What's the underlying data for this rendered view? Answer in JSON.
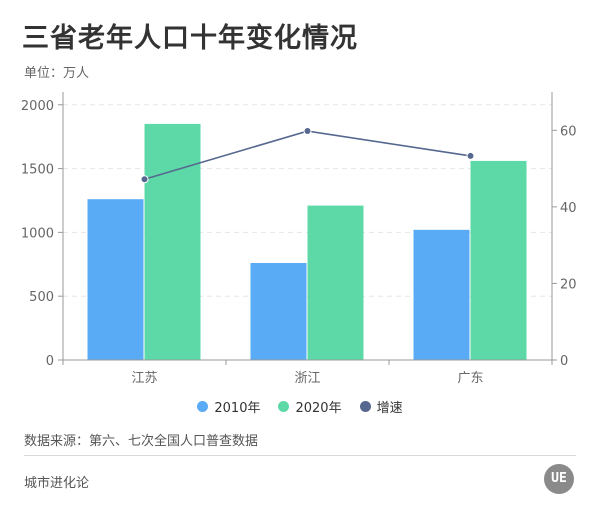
{
  "title": "三省老年人口十年变化情况",
  "unit": "单位：万人",
  "source": "数据来源：第六、七次全国人口普查数据",
  "brand": "城市进化论",
  "logo_text": "UE",
  "colors": {
    "series_2010": "#5aabf5",
    "series_2020": "#5dd9a7",
    "growth": "#56688f",
    "axis": "#666666",
    "grid": "#e6e6e6"
  },
  "chart_data": {
    "type": "bar",
    "categories": [
      "江苏",
      "浙江",
      "广东"
    ],
    "series": [
      {
        "name": "2010年",
        "type": "bar",
        "axis": "left",
        "values": [
          1260,
          760,
          1020
        ]
      },
      {
        "name": "2020年",
        "type": "bar",
        "axis": "left",
        "values": [
          1850,
          1210,
          1560
        ]
      },
      {
        "name": "增速",
        "type": "line",
        "axis": "right",
        "values": [
          47.2,
          59.8,
          53.3
        ]
      }
    ],
    "ylim_left": [
      0,
      2100
    ],
    "yticks_left": [
      "0",
      "500",
      "1000",
      "1500",
      "2000"
    ],
    "ylim_right": [
      0,
      70
    ],
    "yticks_right": [
      "0",
      "20",
      "40",
      "60"
    ],
    "grid": true,
    "legend_position": "bottom"
  }
}
